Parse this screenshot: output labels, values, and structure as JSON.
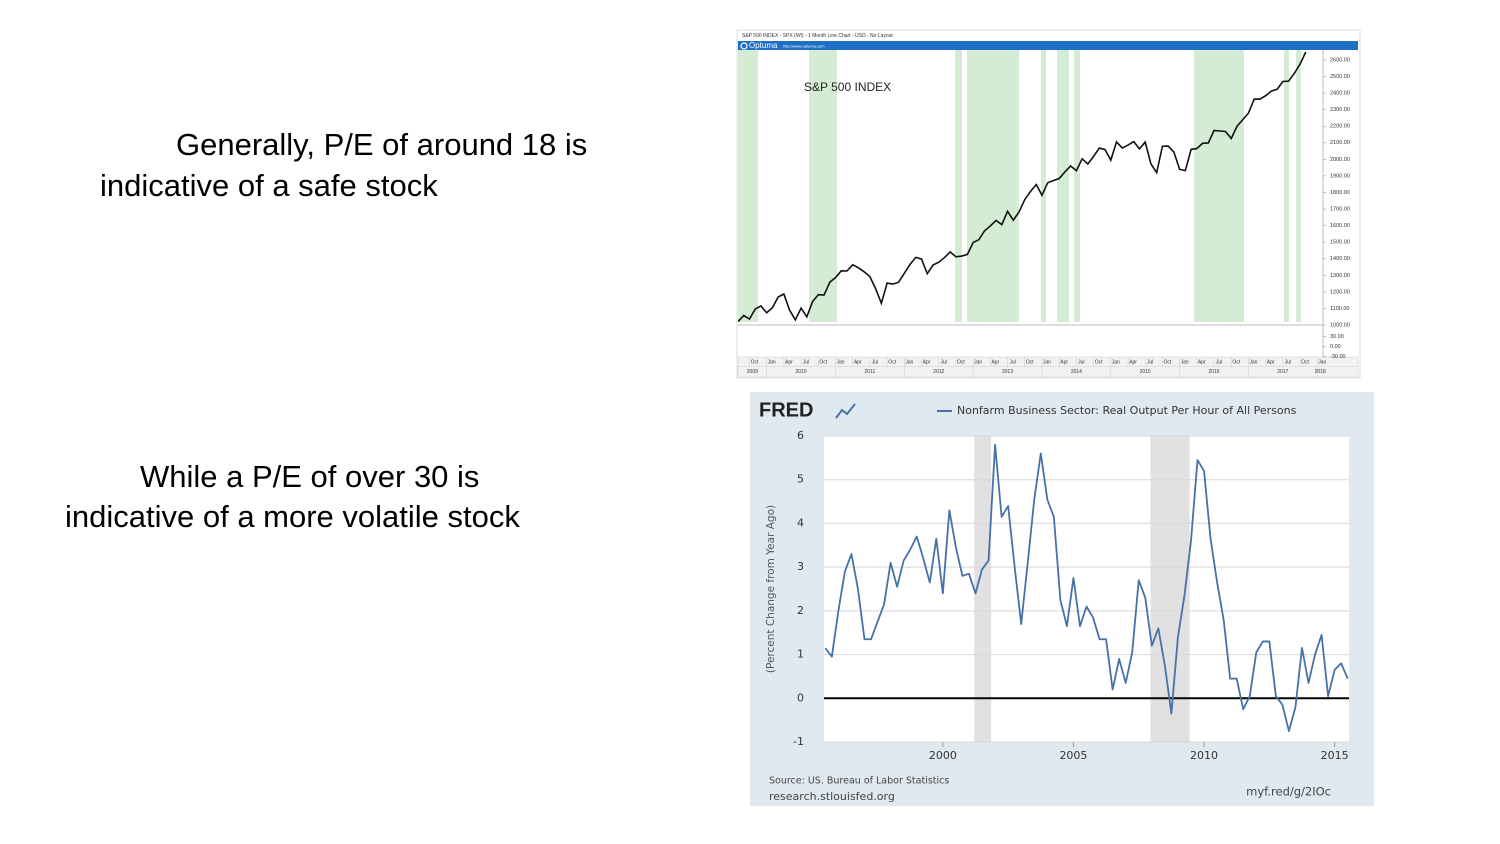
{
  "slide": {
    "block1": [
      "Generally, P/E of around 18 is",
      "indicative of a safe stock"
    ],
    "block2": [
      "While a P/E of over 30 is",
      "indicative of a more volatile stock"
    ]
  },
  "chart_data": [
    {
      "type": "line",
      "header": "S&P 500 INDEX - SPX (WI) - 1 Month Line Chart - USD - No Layout",
      "brand": "Optuma",
      "url": "http://www.optuma.com",
      "annotation": "S&P 500 INDEX",
      "color": "#111111",
      "x": [
        "2009-08",
        "2009-09",
        "2009-10",
        "2009-11",
        "2009-12",
        "2010-01",
        "2010-02",
        "2010-03",
        "2010-04",
        "2010-05",
        "2010-06",
        "2010-07",
        "2010-08",
        "2010-09",
        "2010-10",
        "2010-11",
        "2010-12",
        "2011-01",
        "2011-02",
        "2011-03",
        "2011-04",
        "2011-05",
        "2011-06",
        "2011-07",
        "2011-08",
        "2011-09",
        "2011-10",
        "2011-11",
        "2011-12",
        "2012-01",
        "2012-02",
        "2012-03",
        "2012-04",
        "2012-05",
        "2012-06",
        "2012-07",
        "2012-08",
        "2012-09",
        "2012-10",
        "2012-11",
        "2012-12",
        "2013-01",
        "2013-02",
        "2013-03",
        "2013-04",
        "2013-05",
        "2013-06",
        "2013-07",
        "2013-08",
        "2013-09",
        "2013-10",
        "2013-11",
        "2013-12",
        "2014-01",
        "2014-02",
        "2014-03",
        "2014-04",
        "2014-05",
        "2014-06",
        "2014-07",
        "2014-08",
        "2014-09",
        "2014-10",
        "2014-11",
        "2014-12",
        "2015-01",
        "2015-02",
        "2015-03",
        "2015-04",
        "2015-05",
        "2015-06",
        "2015-07",
        "2015-08",
        "2015-09",
        "2015-10",
        "2015-11",
        "2015-12",
        "2016-01",
        "2016-02",
        "2016-03",
        "2016-04",
        "2016-05",
        "2016-06",
        "2016-07",
        "2016-08",
        "2016-09",
        "2016-10",
        "2016-11",
        "2016-12",
        "2017-01",
        "2017-02",
        "2017-03",
        "2017-04",
        "2017-05",
        "2017-06",
        "2017-07",
        "2017-08",
        "2017-09",
        "2017-10",
        "2017-11"
      ],
      "values": [
        1021,
        1057,
        1036,
        1096,
        1115,
        1074,
        1104,
        1169,
        1187,
        1089,
        1031,
        1102,
        1049,
        1141,
        1183,
        1181,
        1258,
        1286,
        1327,
        1326,
        1364,
        1345,
        1321,
        1292,
        1219,
        1131,
        1253,
        1247,
        1258,
        1312,
        1366,
        1408,
        1398,
        1310,
        1362,
        1379,
        1407,
        1441,
        1412,
        1416,
        1426,
        1498,
        1515,
        1569,
        1598,
        1631,
        1606,
        1686,
        1633,
        1682,
        1757,
        1806,
        1848,
        1783,
        1859,
        1872,
        1884,
        1924,
        1960,
        1931,
        2003,
        1972,
        2018,
        2068,
        2059,
        1995,
        2105,
        2068,
        2086,
        2107,
        2063,
        2104,
        1972,
        1920,
        2079,
        2080,
        2044,
        1940,
        1932,
        2060,
        2065,
        2097,
        2099,
        2174,
        2171,
        2168,
        2126,
        2199,
        2239,
        2279,
        2364,
        2363,
        2384,
        2412,
        2423,
        2470,
        2472,
        2519,
        2575,
        2648
      ],
      "xlim": [
        "2009-08",
        "2018-02"
      ],
      "xticks": [
        {
          "value": "2009-10",
          "label": "Oct"
        },
        {
          "value": "2010-01",
          "label": "Jan"
        },
        {
          "value": "2010-04",
          "label": "Apr"
        },
        {
          "value": "2010-07",
          "label": "Jul"
        },
        {
          "value": "2010-10",
          "label": "Oct"
        },
        {
          "value": "2011-01",
          "label": "Jan"
        },
        {
          "value": "2011-04",
          "label": "Apr"
        },
        {
          "value": "2011-07",
          "label": "Jul"
        },
        {
          "value": "2011-10",
          "label": "Oct"
        },
        {
          "value": "2012-01",
          "label": "Jan"
        },
        {
          "value": "2012-04",
          "label": "Apr"
        },
        {
          "value": "2012-07",
          "label": "Jul"
        },
        {
          "value": "2012-10",
          "label": "Oct"
        },
        {
          "value": "2013-01",
          "label": "Jan"
        },
        {
          "value": "2013-04",
          "label": "Apr"
        },
        {
          "value": "2013-07",
          "label": "Jul"
        },
        {
          "value": "2013-10",
          "label": "Oct"
        },
        {
          "value": "2014-01",
          "label": "Jan"
        },
        {
          "value": "2014-04",
          "label": "Apr"
        },
        {
          "value": "2014-07",
          "label": "Jul"
        },
        {
          "value": "2014-10",
          "label": "Oct"
        },
        {
          "value": "2015-01",
          "label": "Jan"
        },
        {
          "value": "2015-04",
          "label": "Apr"
        },
        {
          "value": "2015-07",
          "label": "Jul"
        },
        {
          "value": "2015-10",
          "label": "Oct"
        },
        {
          "value": "2016-01",
          "label": "Jan"
        },
        {
          "value": "2016-04",
          "label": "Apr"
        },
        {
          "value": "2016-07",
          "label": "Jul"
        },
        {
          "value": "2016-10",
          "label": "Oct"
        },
        {
          "value": "2017-01",
          "label": "Jan"
        },
        {
          "value": "2017-04",
          "label": "Apr"
        },
        {
          "value": "2017-07",
          "label": "Jul"
        },
        {
          "value": "2017-10",
          "label": "Oct"
        },
        {
          "value": "2018-01",
          "label": "Jan"
        }
      ],
      "year_labels": [
        "2009",
        "2010",
        "2011",
        "2012",
        "2013",
        "2014",
        "2015",
        "2016",
        "2017",
        "2018"
      ],
      "ylim": [
        1000,
        2660
      ],
      "yticks": [
        {
          "value": 1000,
          "label": "1000.00"
        },
        {
          "value": 1100,
          "label": "1100.00"
        },
        {
          "value": 1200,
          "label": "1200.00"
        },
        {
          "value": 1300,
          "label": "1300.00"
        },
        {
          "value": 1400,
          "label": "1400.00"
        },
        {
          "value": 1500,
          "label": "1500.00"
        },
        {
          "value": 1600,
          "label": "1600.00"
        },
        {
          "value": 1700,
          "label": "1700.00"
        },
        {
          "value": 1800,
          "label": "1800.00"
        },
        {
          "value": 1900,
          "label": "1900.00"
        },
        {
          "value": 2000,
          "label": "2000.00"
        },
        {
          "value": 2100,
          "label": "2100.00"
        },
        {
          "value": 2200,
          "label": "2200.00"
        },
        {
          "value": 2300,
          "label": "2300.00"
        },
        {
          "value": 2400,
          "label": "2400.00"
        },
        {
          "value": 2500,
          "label": "2500.00"
        },
        {
          "value": 2600,
          "label": "2600.00"
        }
      ],
      "sub_ylim": [
        -32,
        58
      ],
      "sub_yticks": [
        {
          "value": 30,
          "label": "30.00"
        },
        {
          "value": 0,
          "label": "0.00"
        },
        {
          "value": -30,
          "label": "-30.00"
        }
      ]
    },
    {
      "type": "line",
      "logo": "FRED",
      "ylabel": "(Percent Change from Year Ago)",
      "source": "Source: US. Bureau of Labor Statistics",
      "site": "research.stlouisfed.org",
      "short_url": "myf.red/g/2IOc",
      "x": [
        1995.5,
        1995.75,
        1996,
        1996.25,
        1996.5,
        1996.75,
        1997,
        1997.25,
        1997.5,
        1997.75,
        1998,
        1998.25,
        1998.5,
        1998.75,
        1999,
        1999.25,
        1999.5,
        1999.75,
        2000,
        2000.25,
        2000.5,
        2000.75,
        2001,
        2001.25,
        2001.5,
        2001.75,
        2002,
        2002.25,
        2002.5,
        2002.75,
        2003,
        2003.25,
        2003.5,
        2003.75,
        2004,
        2004.25,
        2004.5,
        2004.75,
        2005,
        2005.25,
        2005.5,
        2005.75,
        2006,
        2006.25,
        2006.5,
        2006.75,
        2007,
        2007.25,
        2007.5,
        2007.75,
        2008,
        2008.25,
        2008.5,
        2008.75,
        2009,
        2009.25,
        2009.5,
        2009.75,
        2010,
        2010.25,
        2010.5,
        2010.75,
        2011,
        2011.25,
        2011.5,
        2011.75,
        2012,
        2012.25,
        2012.5,
        2012.75,
        2013,
        2013.25,
        2013.5,
        2013.75,
        2014,
        2014.25,
        2014.5,
        2014.75,
        2015,
        2015.25,
        2015.5
      ],
      "series": [
        {
          "name": "Nonfarm Business Sector: Real Output Per Hour of All Persons",
          "color": "#4572a7",
          "values": [
            1.15,
            0.95,
            2.0,
            2.9,
            3.3,
            2.5,
            1.35,
            1.35,
            1.75,
            2.15,
            3.1,
            2.55,
            3.15,
            3.4,
            3.7,
            3.2,
            2.65,
            3.65,
            2.4,
            4.3,
            3.45,
            2.8,
            2.85,
            2.4,
            2.95,
            3.15,
            5.8,
            4.15,
            4.4,
            3.0,
            1.7,
            3.1,
            4.55,
            5.6,
            4.55,
            4.15,
            2.25,
            1.65,
            2.75,
            1.65,
            2.1,
            1.85,
            1.35,
            1.35,
            0.2,
            0.9,
            0.35,
            1.05,
            2.7,
            2.3,
            1.2,
            1.6,
            0.75,
            -0.35,
            1.4,
            2.35,
            3.6,
            5.45,
            5.2,
            3.65,
            2.65,
            1.8,
            0.45,
            0.45,
            -0.25,
            0.05,
            1.05,
            1.3,
            1.3,
            0.05,
            -0.15,
            -0.75,
            -0.2,
            1.15,
            0.35,
            1.0,
            1.45,
            0.05,
            0.65,
            0.8,
            0.45
          ]
        }
      ],
      "xlim": [
        1995.45,
        2015.55
      ],
      "ylim": [
        -1,
        6
      ],
      "xticks": [
        2000,
        2005,
        2010,
        2015
      ],
      "yticks": [
        -1,
        0,
        1,
        2,
        3,
        4,
        5,
        6
      ],
      "grid": true,
      "recessions": [
        [
          2001.2,
          2001.85
        ],
        [
          2007.95,
          2009.45
        ]
      ]
    }
  ]
}
